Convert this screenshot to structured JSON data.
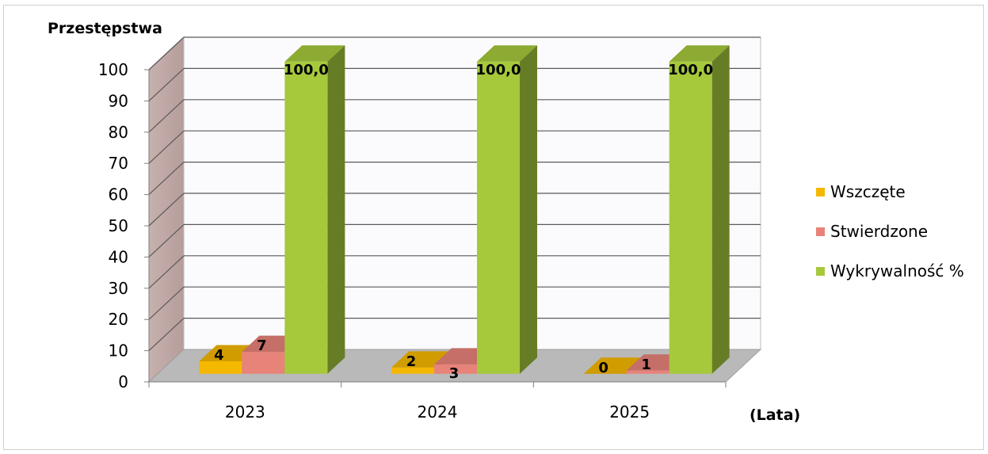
{
  "chart_data": {
    "type": "bar",
    "ylabel": "Przestępstwa",
    "xlabel": "(Lata)",
    "categories": [
      "2023",
      "2024",
      "2025"
    ],
    "series": [
      {
        "name": "Wszczęte",
        "values": [
          4,
          2,
          0
        ],
        "labels": [
          "4",
          "2",
          "0"
        ],
        "color": "#f5b800"
      },
      {
        "name": "Stwierdzone",
        "values": [
          7,
          3,
          1
        ],
        "labels": [
          "7",
          "3",
          "1"
        ],
        "color": "#e8837a"
      },
      {
        "name": "Wykrywalność %",
        "values": [
          100,
          100,
          100
        ],
        "labels": [
          "100,0",
          "100,0",
          "100,0"
        ],
        "color": "#a6c93c"
      }
    ],
    "ylim": [
      0,
      100
    ],
    "yticks": [
      "0",
      "10",
      "20",
      "30",
      "40",
      "50",
      "60",
      "70",
      "80",
      "90",
      "100"
    ],
    "grid": true,
    "legend": "right",
    "style": "3d"
  }
}
